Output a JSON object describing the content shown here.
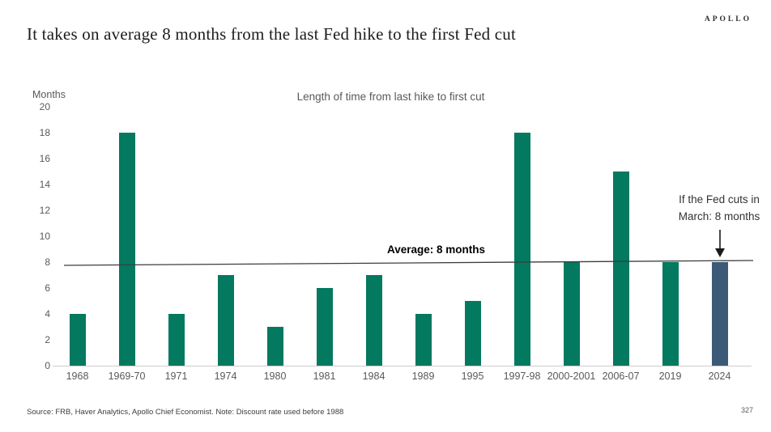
{
  "page": {
    "logo": "APOLLO",
    "title": "It takes on average 8 months from the last Fed hike to the first Fed cut",
    "source_note": "Source: FRB, Haver Analytics, Apollo Chief Economist. Note: Discount rate used before 1988",
    "page_number": "327"
  },
  "chart_data": {
    "type": "bar",
    "title": "Length of time from last hike to first cut",
    "ylabel": "Months",
    "xlabel": "",
    "ylim": [
      0,
      20
    ],
    "ytick_step": 2,
    "grid": false,
    "legend": "none",
    "categories": [
      "1968",
      "1969-70",
      "1971",
      "1974",
      "1980",
      "1981",
      "1984",
      "1989",
      "1995",
      "1997-98",
      "2000-2001",
      "2006-07",
      "2019",
      "2024"
    ],
    "values": [
      4,
      18,
      4,
      7,
      3,
      6,
      7,
      4,
      5,
      18,
      8,
      15,
      8,
      8
    ],
    "bar_color": "#03795f",
    "highlight_category": "2024",
    "highlight_color": "#3a5a75",
    "average_line": {
      "value": 8,
      "label": "Average: 8 months",
      "color": "#3d3d3d"
    },
    "annotation": {
      "lines": [
        "If the Fed cuts in",
        "March: 8 months"
      ],
      "target_category": "2024",
      "arrow": "down-arrow"
    }
  }
}
